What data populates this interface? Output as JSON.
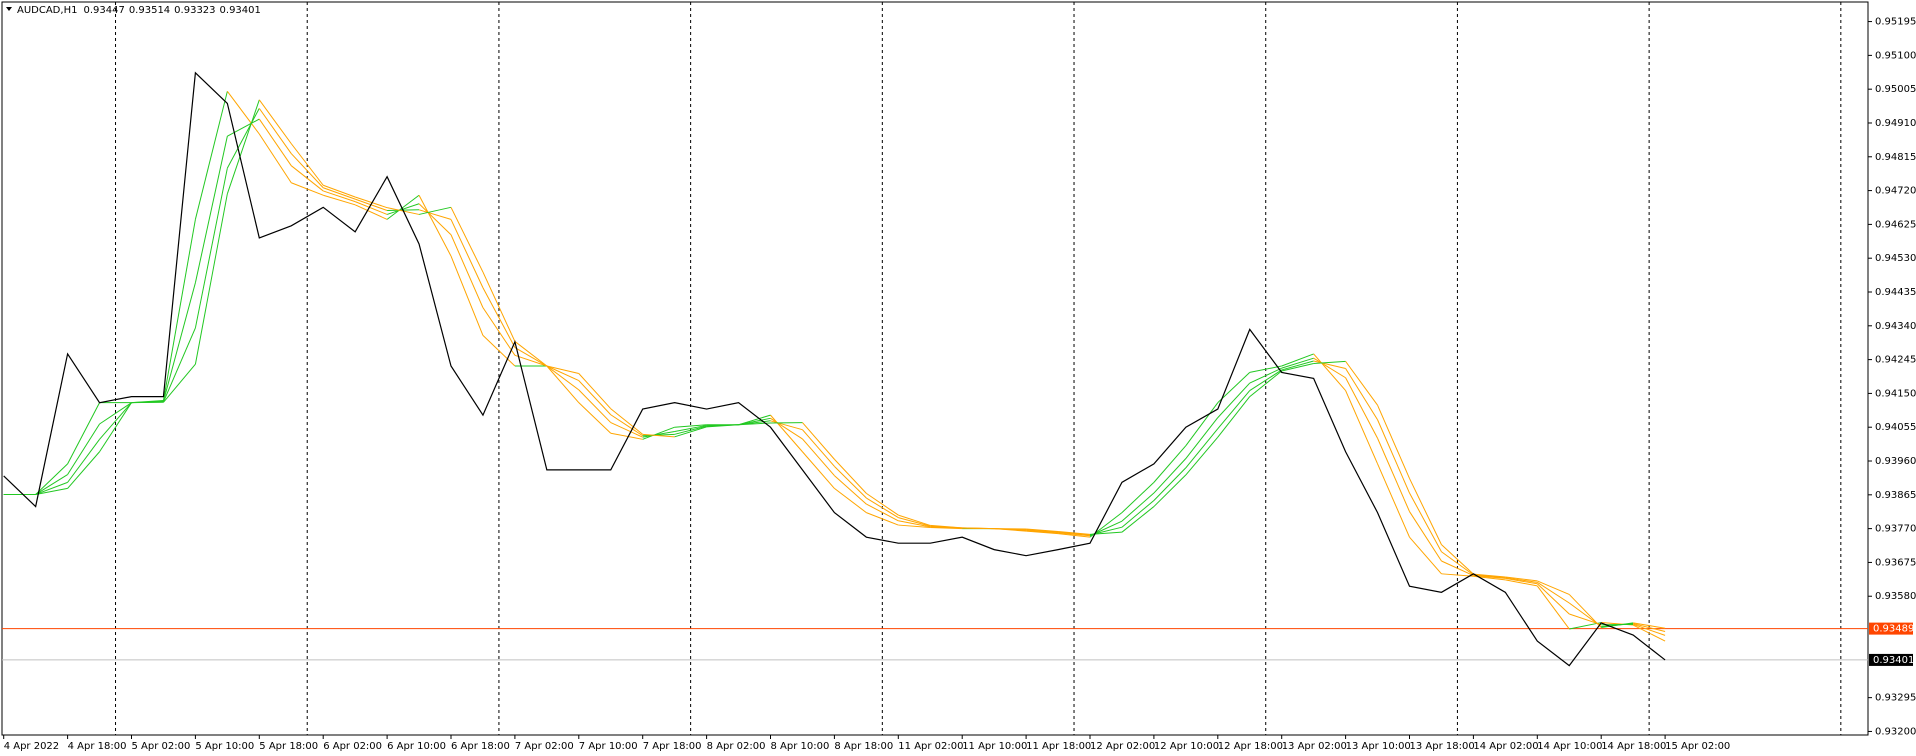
{
  "chart_data": {
    "type": "line",
    "title": "AUDCAD,H1",
    "ohlc": [
      0.93447,
      0.93514,
      0.93323,
      0.93401
    ],
    "x": [
      "4 Apr 10:00",
      "4 Apr 14:00",
      "4 Apr 18:00",
      "4 Apr 22:00",
      "5 Apr 02:00",
      "5 Apr 06:00",
      "5 Apr 10:00",
      "5 Apr 14:00",
      "5 Apr 18:00",
      "5 Apr 22:00",
      "6 Apr 02:00",
      "6 Apr 06:00",
      "6 Apr 10:00",
      "6 Apr 14:00",
      "6 Apr 18:00",
      "6 Apr 22:00",
      "7 Apr 02:00",
      "7 Apr 06:00",
      "7 Apr 10:00",
      "7 Apr 14:00",
      "7 Apr 18:00",
      "7 Apr 22:00",
      "8 Apr 02:00",
      "8 Apr 06:00",
      "8 Apr 10:00",
      "8 Apr 14:00",
      "8 Apr 18:00",
      "8 Apr 22:00",
      "11 Apr 02:00",
      "11 Apr 06:00",
      "11 Apr 10:00",
      "11 Apr 14:00",
      "11 Apr 18:00",
      "11 Apr 22:00",
      "12 Apr 02:00",
      "12 Apr 06:00",
      "12 Apr 10:00",
      "12 Apr 14:00",
      "12 Apr 18:00",
      "12 Apr 22:00",
      "13 Apr 02:00",
      "13 Apr 06:00",
      "13 Apr 10:00",
      "13 Apr 14:00",
      "13 Apr 18:00",
      "13 Apr 22:00",
      "14 Apr 02:00",
      "14 Apr 06:00",
      "14 Apr 10:00",
      "14 Apr 14:00",
      "14 Apr 18:00",
      "14 Apr 22:00",
      "15 Apr 02:00"
    ],
    "xticks": [
      {
        "value": "4 Apr 10:00",
        "label": "4 Apr 2022"
      },
      "4 Apr 18:00",
      "5 Apr 02:00",
      "5 Apr 10:00",
      "5 Apr 18:00",
      "6 Apr 02:00",
      "6 Apr 10:00",
      "6 Apr 18:00",
      "7 Apr 02:00",
      "7 Apr 10:00",
      "7 Apr 18:00",
      "8 Apr 02:00",
      "8 Apr 10:00",
      "8 Apr 18:00",
      "11 Apr 02:00",
      "11 Apr 10:00",
      "11 Apr 18:00",
      "12 Apr 02:00",
      "12 Apr 10:00",
      "12 Apr 18:00",
      "13 Apr 02:00",
      "13 Apr 10:00",
      "13 Apr 18:00",
      "14 Apr 02:00",
      "14 Apr 10:00",
      "14 Apr 18:00",
      "15 Apr 02:00"
    ],
    "ylim": [
      0.9319,
      0.9525
    ],
    "yticks": [
      0.95195,
      {
        "value": 0.951,
        "label": "0.95100"
      },
      0.95005,
      {
        "value": 0.9491,
        "label": "0.94910"
      },
      0.94815,
      {
        "value": 0.9472,
        "label": "0.94720"
      },
      0.94625,
      {
        "value": 0.9453,
        "label": "0.94530"
      },
      0.94435,
      {
        "value": 0.9434,
        "label": "0.94340"
      },
      0.94245,
      {
        "value": 0.9415,
        "label": "0.94150"
      },
      0.94055,
      {
        "value": 0.9396,
        "label": "0.93960"
      },
      0.93865,
      {
        "value": 0.9377,
        "label": "0.93770"
      },
      0.93675,
      {
        "value": 0.9358,
        "label": "0.93580"
      },
      0.93295,
      {
        "value": 0.932,
        "label": "0.93200"
      }
    ],
    "series": [
      {
        "color": "#000000",
        "values": [
          0.93918,
          0.93832,
          0.94261,
          0.94124,
          0.94141,
          0.94141,
          0.95051,
          0.94965,
          0.94587,
          0.94621,
          0.94673,
          0.94604,
          0.94759,
          0.9457,
          0.94227,
          0.94089,
          0.94295,
          0.93935,
          0.93935,
          0.93935,
          0.94106,
          0.94124,
          0.94106,
          0.94124,
          0.94055,
          0.93935,
          0.93815,
          0.93746,
          0.93729,
          0.93729,
          0.93746,
          0.93711,
          0.93694,
          0.93711,
          0.93729,
          0.939,
          0.93952,
          0.94055,
          0.94106,
          0.9433,
          0.94209,
          0.94192,
          0.93986,
          0.93815,
          0.93608,
          0.93591,
          0.93643,
          0.93591,
          0.93454,
          0.93385,
          0.93505,
          0.93471,
          0.93401
        ]
      }
    ],
    "up_color": "#22c822",
    "down_color": "#ffa500",
    "ma_series": [
      {
        "values": [
          0.93866,
          0.93866,
          0.93952,
          0.94124,
          0.94124,
          0.9413,
          0.94639,
          0.94999,
          0.94879,
          0.94742,
          0.94707,
          0.9468,
          0.94639,
          0.94707,
          0.94536,
          0.94313,
          0.94227,
          0.94227,
          0.94124,
          0.94038,
          0.94021,
          0.94055,
          0.94062,
          0.94062,
          0.94089,
          0.93986,
          0.93883,
          0.93815,
          0.9378,
          0.93773,
          0.9377,
          0.9377,
          0.93763,
          0.93756,
          0.93746,
          0.93815,
          0.939,
          0.94003,
          0.94124,
          0.94209,
          0.94227,
          0.94261,
          0.94158,
          0.93952,
          0.93746,
          0.93643,
          0.93636,
          0.93626,
          0.93609,
          0.93488,
          0.93506,
          0.93499,
          0.93454
        ]
      },
      {
        "values": [
          0.93866,
          0.93866,
          0.93922,
          0.94064,
          0.94124,
          0.94128,
          0.94461,
          0.94873,
          0.94921,
          0.9479,
          0.94719,
          0.94689,
          0.94653,
          0.94683,
          0.94596,
          0.94391,
          0.94257,
          0.94227,
          0.9416,
          0.94068,
          0.94027,
          0.94043,
          0.9406,
          0.94062,
          0.9408,
          0.94022,
          0.93919,
          0.93839,
          0.93792,
          0.93775,
          0.93771,
          0.9377,
          0.93765,
          0.93758,
          0.9375,
          0.93791,
          0.9387,
          0.93967,
          0.94082,
          0.94179,
          0.94221,
          0.94249,
          0.94194,
          0.94024,
          0.93818,
          0.93679,
          0.93638,
          0.9363,
          0.93615,
          0.9353,
          0.935,
          0.93501,
          0.9347
        ]
      },
      {
        "values": [
          0.93866,
          0.93866,
          0.939,
          0.94021,
          0.94124,
          0.94126,
          0.94334,
          0.94783,
          0.94951,
          0.94824,
          0.94728,
          0.94696,
          0.94664,
          0.94666,
          0.94639,
          0.94447,
          0.94279,
          0.94227,
          0.94186,
          0.9409,
          0.94031,
          0.94035,
          0.94058,
          0.94062,
          0.94073,
          0.94048,
          0.93945,
          0.93856,
          0.93801,
          0.93777,
          0.93772,
          0.9377,
          0.93767,
          0.9376,
          0.93752,
          0.93774,
          0.93849,
          0.93941,
          0.94051,
          0.94158,
          0.94216,
          0.94241,
          0.9422,
          0.94076,
          0.9387,
          0.93705,
          0.9364,
          0.93632,
          0.93619,
          0.93561,
          0.93495,
          0.93503,
          0.93481
        ]
      },
      {
        "values": [
          0.93866,
          0.93866,
          0.93883,
          0.93986,
          0.94124,
          0.94125,
          0.94232,
          0.94711,
          0.94975,
          0.94852,
          0.94735,
          0.94702,
          0.94672,
          0.94653,
          0.94673,
          0.94491,
          0.94296,
          0.94227,
          0.94206,
          0.94107,
          0.94035,
          0.94028,
          0.94056,
          0.94062,
          0.94067,
          0.94068,
          0.93965,
          0.93869,
          0.93808,
          0.93779,
          0.93772,
          0.9377,
          0.93769,
          0.93762,
          0.93754,
          0.9376,
          0.93832,
          0.93921,
          0.94027,
          0.94141,
          0.94213,
          0.94234,
          0.9424,
          0.94117,
          0.93911,
          0.93725,
          0.93642,
          0.93634,
          0.93623,
          0.93585,
          0.93492,
          0.93505,
          0.9349
        ]
      }
    ],
    "price_lines": [
      {
        "value": 0.93489,
        "color": "#ff4500"
      },
      {
        "value": 0.93401,
        "color": "#000000",
        "line_color": "#c0c0c0"
      }
    ],
    "grid": false
  }
}
